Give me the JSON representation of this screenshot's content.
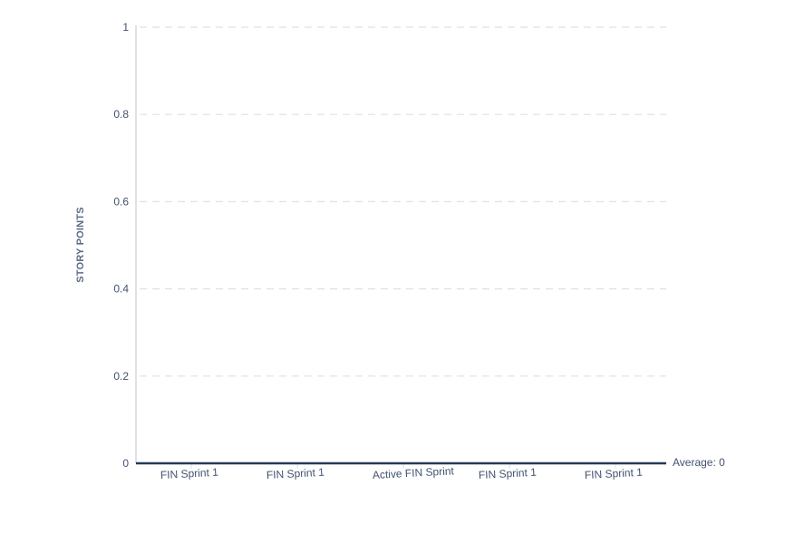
{
  "chart_data": {
    "type": "line",
    "title": "",
    "ylabel": "STORY POINTS",
    "xlabel": "",
    "categories": [
      "FIN Sprint 1",
      "FIN Sprint 1",
      "Active FIN Sprint",
      "FIN Sprint 1",
      "FIN Sprint 1"
    ],
    "series": [
      {
        "values": [
          0,
          0,
          0,
          0,
          0
        ]
      }
    ],
    "ylim": [
      0,
      1
    ],
    "yticks": [
      "0",
      "0.2",
      "0.4",
      "0.6",
      "0.8",
      "1"
    ],
    "average_label": "Average: 0",
    "average_value": 0,
    "grid": true,
    "colors": {
      "line": "#253858",
      "grid": "#dfe1e6",
      "axis": "#dfe1e6",
      "text": "#42526e"
    }
  }
}
